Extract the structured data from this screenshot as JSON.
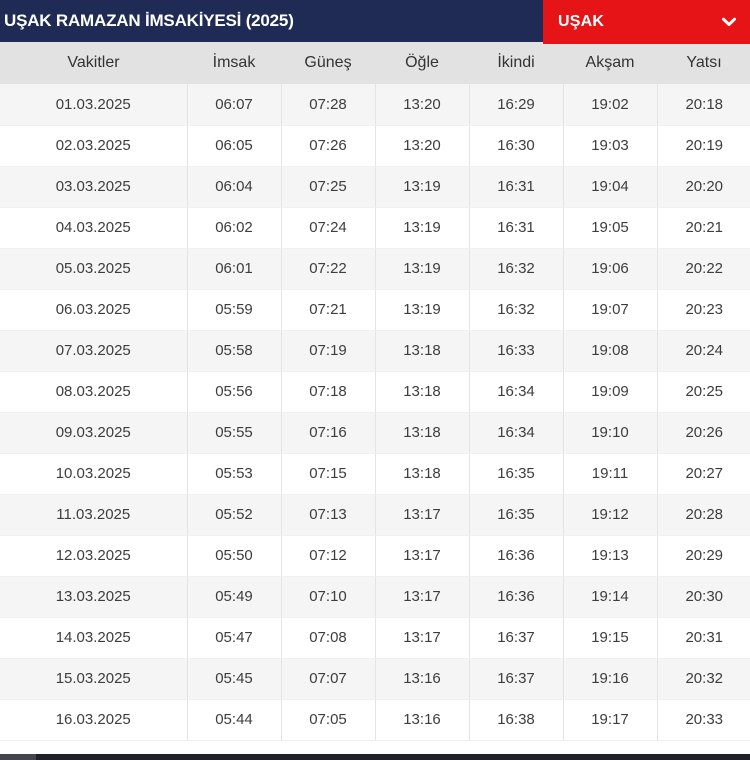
{
  "header": {
    "title": "UŞAK RAMAZAN İMSAKİYESİ (2025)",
    "city_selector": {
      "value": "UŞAK",
      "icon": "chevron-down-icon"
    }
  },
  "table": {
    "headers": [
      "Vakitler",
      "İmsak",
      "Güneş",
      "Öğle",
      "İkindi",
      "Akşam",
      "Yatsı"
    ],
    "rows": [
      {
        "date": "01.03.2025",
        "imsak": "06:07",
        "gunes": "07:28",
        "ogle": "13:20",
        "ikindi": "16:29",
        "aksam": "19:02",
        "yatsi": "20:18"
      },
      {
        "date": "02.03.2025",
        "imsak": "06:05",
        "gunes": "07:26",
        "ogle": "13:20",
        "ikindi": "16:30",
        "aksam": "19:03",
        "yatsi": "20:19"
      },
      {
        "date": "03.03.2025",
        "imsak": "06:04",
        "gunes": "07:25",
        "ogle": "13:19",
        "ikindi": "16:31",
        "aksam": "19:04",
        "yatsi": "20:20"
      },
      {
        "date": "04.03.2025",
        "imsak": "06:02",
        "gunes": "07:24",
        "ogle": "13:19",
        "ikindi": "16:31",
        "aksam": "19:05",
        "yatsi": "20:21"
      },
      {
        "date": "05.03.2025",
        "imsak": "06:01",
        "gunes": "07:22",
        "ogle": "13:19",
        "ikindi": "16:32",
        "aksam": "19:06",
        "yatsi": "20:22"
      },
      {
        "date": "06.03.2025",
        "imsak": "05:59",
        "gunes": "07:21",
        "ogle": "13:19",
        "ikindi": "16:32",
        "aksam": "19:07",
        "yatsi": "20:23"
      },
      {
        "date": "07.03.2025",
        "imsak": "05:58",
        "gunes": "07:19",
        "ogle": "13:18",
        "ikindi": "16:33",
        "aksam": "19:08",
        "yatsi": "20:24"
      },
      {
        "date": "08.03.2025",
        "imsak": "05:56",
        "gunes": "07:18",
        "ogle": "13:18",
        "ikindi": "16:34",
        "aksam": "19:09",
        "yatsi": "20:25"
      },
      {
        "date": "09.03.2025",
        "imsak": "05:55",
        "gunes": "07:16",
        "ogle": "13:18",
        "ikindi": "16:34",
        "aksam": "19:10",
        "yatsi": "20:26"
      },
      {
        "date": "10.03.2025",
        "imsak": "05:53",
        "gunes": "07:15",
        "ogle": "13:18",
        "ikindi": "16:35",
        "aksam": "19:11",
        "yatsi": "20:27"
      },
      {
        "date": "11.03.2025",
        "imsak": "05:52",
        "gunes": "07:13",
        "ogle": "13:17",
        "ikindi": "16:35",
        "aksam": "19:12",
        "yatsi": "20:28"
      },
      {
        "date": "12.03.2025",
        "imsak": "05:50",
        "gunes": "07:12",
        "ogle": "13:17",
        "ikindi": "16:36",
        "aksam": "19:13",
        "yatsi": "20:29"
      },
      {
        "date": "13.03.2025",
        "imsak": "05:49",
        "gunes": "07:10",
        "ogle": "13:17",
        "ikindi": "16:36",
        "aksam": "19:14",
        "yatsi": "20:30"
      },
      {
        "date": "14.03.2025",
        "imsak": "05:47",
        "gunes": "07:08",
        "ogle": "13:17",
        "ikindi": "16:37",
        "aksam": "19:15",
        "yatsi": "20:31"
      },
      {
        "date": "15.03.2025",
        "imsak": "05:45",
        "gunes": "07:07",
        "ogle": "13:16",
        "ikindi": "16:37",
        "aksam": "19:16",
        "yatsi": "20:32"
      },
      {
        "date": "16.03.2025",
        "imsak": "05:44",
        "gunes": "07:05",
        "ogle": "13:16",
        "ikindi": "16:38",
        "aksam": "19:17",
        "yatsi": "20:33"
      }
    ]
  },
  "colors": {
    "navy": "#1f2b55",
    "red": "#e61317",
    "header_gray": "#e2e2e2",
    "row_alt": "#f5f5f6"
  }
}
